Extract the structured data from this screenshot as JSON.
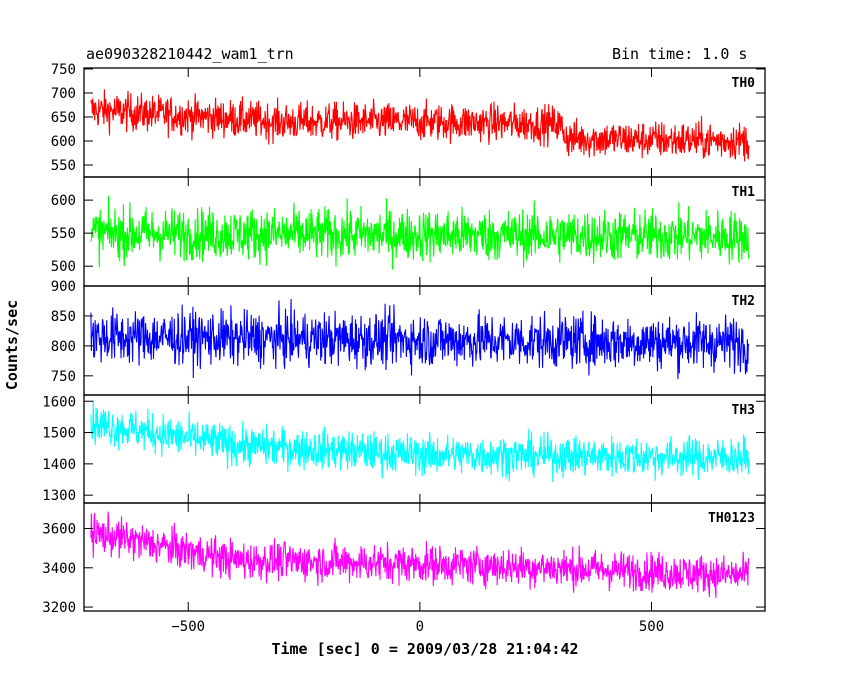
{
  "header": {
    "left_title": "ae090328210442_wam1_trn",
    "right_title": "Bin time: 1.0 s"
  },
  "chart_data": {
    "type": "line",
    "xlabel": "Time [sec] 0 = 2009/03/28 21:04:42",
    "ylabel": "Counts/sec",
    "xlim": [
      -725,
      745
    ],
    "x_range": [
      -710,
      710
    ],
    "x_ticks": [
      -500,
      0,
      500
    ],
    "x_tick_labels": [
      "−500",
      "0",
      "500"
    ],
    "panels": [
      {
        "label": "TH0",
        "color": "#ff0000",
        "ylim": [
          525,
          752
        ],
        "y_ticks": [
          550,
          600,
          650,
          700,
          750
        ],
        "y_tick_labels": [
          "550",
          "600",
          "650",
          "700",
          "750"
        ],
        "trend": [
          [
            -710,
            665
          ],
          [
            -300,
            640
          ],
          [
            0,
            640
          ],
          [
            300,
            635
          ],
          [
            320,
            605
          ],
          [
            710,
            600
          ]
        ],
        "noise": 28
      },
      {
        "label": "TH1",
        "color": "#00ff00",
        "ylim": [
          470,
          635
        ],
        "y_ticks": [
          500,
          550,
          600
        ],
        "y_tick_labels": [
          "500",
          "550",
          "600"
        ],
        "trend": [
          [
            -710,
            550
          ],
          [
            710,
            545
          ]
        ],
        "noise": 28
      },
      {
        "label": "TH2",
        "color": "#0000ff",
        "ylim": [
          718,
          900
        ],
        "y_ticks": [
          750,
          800,
          850,
          900
        ],
        "y_tick_labels": [
          "750",
          "800",
          "850",
          "900"
        ],
        "trend": [
          [
            -710,
            815
          ],
          [
            710,
            805
          ]
        ],
        "noise": 32
      },
      {
        "label": "TH3",
        "color": "#00ffff",
        "ylim": [
          1275,
          1620
        ],
        "y_ticks": [
          1300,
          1400,
          1500,
          1600
        ],
        "y_tick_labels": [
          "1300",
          "1400",
          "1500",
          "1600"
        ],
        "trend": [
          [
            -710,
            1530
          ],
          [
            -400,
            1460
          ],
          [
            0,
            1430
          ],
          [
            710,
            1420
          ]
        ],
        "noise": 45
      },
      {
        "label": "TH0123",
        "color": "#ff00ff",
        "ylim": [
          3180,
          3730
        ],
        "y_ticks": [
          3200,
          3400,
          3600
        ],
        "y_tick_labels": [
          "3200",
          "3400",
          "3600"
        ],
        "trend": [
          [
            -710,
            3580
          ],
          [
            -400,
            3440
          ],
          [
            0,
            3420
          ],
          [
            300,
            3400
          ],
          [
            710,
            3360
          ]
        ],
        "noise": 70
      }
    ]
  }
}
